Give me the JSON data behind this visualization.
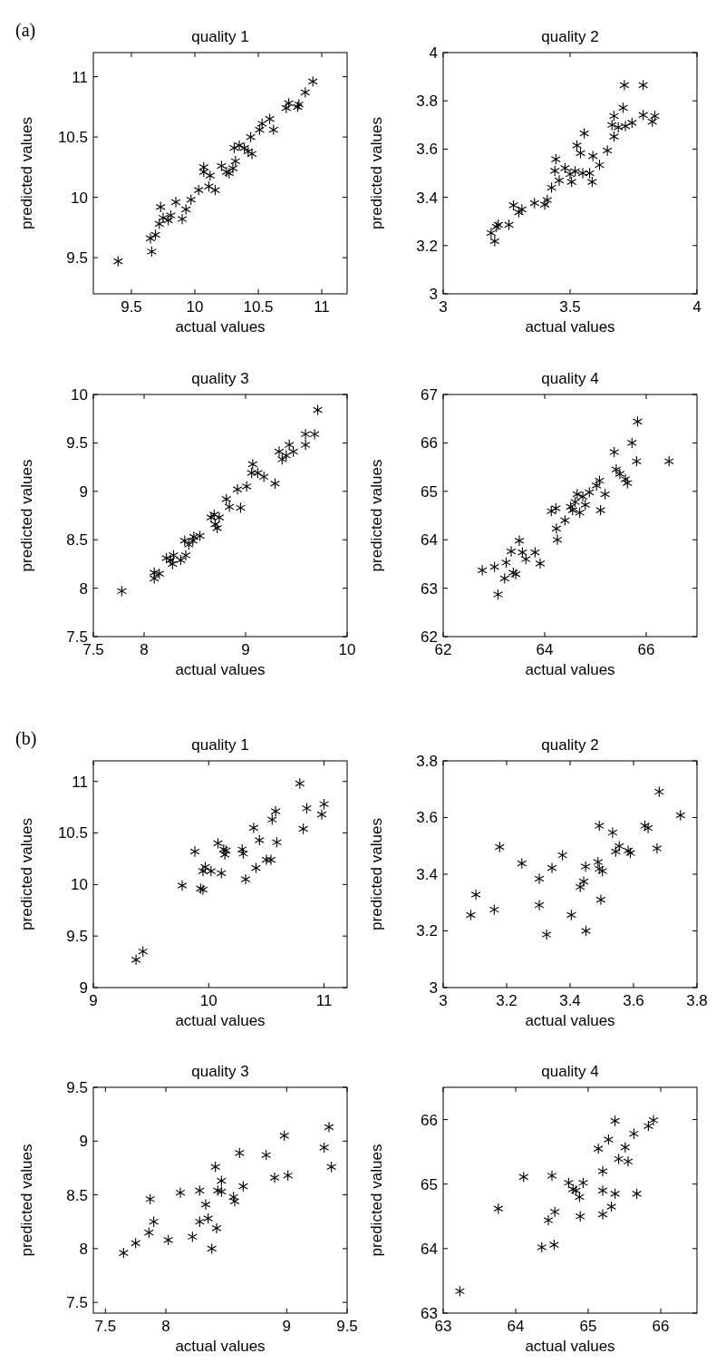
{
  "chart_data": [
    {
      "type": "scatter",
      "title": "quality 1",
      "xlabel": "actual values",
      "ylabel": "predicted values",
      "annotations": [
        "(a)"
      ],
      "color": "#000000",
      "marker": "cross",
      "xlim": [
        9.2,
        11.2
      ],
      "ylim": [
        9.2,
        11.2
      ],
      "xticks": [
        9.5,
        10,
        10.5,
        11
      ],
      "yticks": [
        9.5,
        10,
        10.5,
        11
      ],
      "x": [
        9.395,
        9.65,
        9.69,
        9.66,
        9.73,
        9.72,
        9.75,
        9.79,
        9.81,
        9.85,
        9.9,
        9.93,
        9.97,
        10.03,
        10.07,
        10.07,
        10.12,
        10.11,
        10.16,
        10.21,
        10.25,
        10.27,
        10.3,
        10.32,
        10.31,
        10.35,
        10.39,
        10.42,
        10.45,
        10.44,
        10.51,
        10.53,
        10.59,
        10.62,
        10.72,
        10.74,
        10.81,
        10.82,
        10.87,
        10.93
      ],
      "values": [
        9.47,
        9.66,
        9.69,
        9.55,
        9.92,
        9.78,
        9.83,
        9.81,
        9.85,
        9.96,
        9.82,
        9.9,
        9.98,
        10.06,
        10.25,
        10.21,
        10.18,
        10.09,
        10.06,
        10.26,
        10.21,
        10.2,
        10.24,
        10.3,
        10.41,
        10.43,
        10.41,
        10.38,
        10.36,
        10.5,
        10.56,
        10.61,
        10.65,
        10.56,
        10.74,
        10.78,
        10.75,
        10.77,
        10.87,
        10.96
      ]
    },
    {
      "type": "scatter",
      "title": "quality 2",
      "xlabel": "actual values",
      "ylabel": "predicted values",
      "color": "#000000",
      "marker": "cross",
      "xlim": [
        3,
        4
      ],
      "ylim": [
        3,
        4
      ],
      "xticks": [
        3,
        3.5,
        4
      ],
      "yticks": [
        3,
        3.2,
        3.4,
        3.6,
        3.8,
        4
      ],
      "x": [
        3.189,
        3.203,
        3.21,
        3.217,
        3.259,
        3.277,
        3.298,
        3.31,
        3.36,
        3.4,
        3.41,
        3.427,
        3.444,
        3.44,
        3.457,
        3.48,
        3.5,
        3.506,
        3.52,
        3.527,
        3.541,
        3.55,
        3.577,
        3.556,
        3.59,
        3.587,
        3.616,
        3.647,
        3.665,
        3.673,
        3.673,
        3.69,
        3.709,
        3.718,
        3.744,
        3.714,
        3.788,
        3.788,
        3.824,
        3.834
      ],
      "values": [
        3.252,
        3.218,
        3.278,
        3.286,
        3.286,
        3.367,
        3.338,
        3.35,
        3.376,
        3.37,
        3.389,
        3.44,
        3.558,
        3.51,
        3.47,
        3.521,
        3.496,
        3.464,
        3.508,
        3.615,
        3.583,
        3.5,
        3.5,
        3.665,
        3.571,
        3.464,
        3.534,
        3.594,
        3.7,
        3.737,
        3.652,
        3.69,
        3.771,
        3.695,
        3.709,
        3.865,
        3.865,
        3.741,
        3.714,
        3.737
      ]
    },
    {
      "type": "scatter",
      "title": "quality 3",
      "xlabel": "actual values",
      "ylabel": "predicted values",
      "color": "#000000",
      "marker": "cross",
      "xlim": [
        7.5,
        10
      ],
      "ylim": [
        7.5,
        10
      ],
      "xticks": [
        7.5,
        8,
        9,
        10
      ],
      "yticks": [
        7.5,
        8,
        8.5,
        9,
        9.5,
        10
      ],
      "x": [
        7.78,
        8.1,
        8.1,
        8.15,
        8.22,
        8.26,
        8.28,
        8.29,
        8.36,
        8.41,
        8.4,
        8.44,
        8.48,
        8.49,
        8.55,
        8.66,
        8.69,
        8.7,
        8.72,
        8.74,
        8.81,
        8.84,
        8.92,
        8.95,
        9.01,
        9.07,
        9.06,
        9.12,
        9.18,
        9.29,
        9.33,
        9.36,
        9.4,
        9.43,
        9.47,
        9.59,
        9.59,
        9.68,
        9.71
      ],
      "values": [
        7.97,
        8.1,
        8.16,
        8.15,
        8.31,
        8.29,
        8.25,
        8.34,
        8.29,
        8.34,
        8.49,
        8.45,
        8.49,
        8.53,
        8.54,
        8.73,
        8.76,
        8.66,
        8.62,
        8.73,
        8.92,
        8.84,
        9.02,
        8.83,
        9.05,
        9.28,
        9.19,
        9.19,
        9.15,
        9.08,
        9.41,
        9.33,
        9.37,
        9.48,
        9.41,
        9.48,
        9.59,
        9.59,
        9.84
      ]
    },
    {
      "type": "scatter",
      "title": "quality 4",
      "xlabel": "actual values",
      "ylabel": "predicted values",
      "color": "#000000",
      "marker": "cross",
      "xlim": [
        62,
        67
      ],
      "ylim": [
        62,
        67
      ],
      "xticks": [
        62,
        64,
        66
      ],
      "yticks": [
        62,
        63,
        64,
        65,
        66,
        67
      ],
      "x": [
        62.77,
        63.01,
        63.08,
        63.21,
        63.24,
        63.34,
        63.38,
        63.43,
        63.5,
        63.56,
        63.63,
        63.81,
        63.91,
        64.13,
        64.22,
        64.23,
        64.25,
        64.4,
        64.51,
        64.55,
        64.6,
        64.64,
        64.69,
        64.75,
        64.8,
        64.88,
        65.02,
        65.08,
        65.1,
        65.19,
        65.37,
        65.41,
        65.48,
        65.59,
        65.63,
        65.72,
        65.81,
        65.83,
        66.45
      ],
      "values": [
        63.37,
        63.44,
        62.87,
        63.2,
        63.53,
        63.76,
        63.32,
        63.29,
        63.98,
        63.74,
        63.6,
        63.74,
        63.51,
        64.59,
        64.65,
        64.23,
        64.0,
        64.4,
        64.68,
        64.61,
        64.78,
        64.94,
        64.56,
        64.89,
        64.72,
        64.98,
        65.12,
        65.22,
        64.61,
        64.94,
        65.81,
        65.45,
        65.36,
        65.25,
        65.17,
        66.0,
        65.62,
        66.44,
        65.62
      ]
    },
    {
      "type": "scatter",
      "title": "quality 1",
      "xlabel": "actual values",
      "ylabel": "predicted values",
      "annotations": [
        "(b)"
      ],
      "color": "#000000",
      "marker": "cross",
      "xlim": [
        9,
        11.2
      ],
      "ylim": [
        9,
        11.2
      ],
      "xticks": [
        9,
        10,
        11
      ],
      "yticks": [
        9,
        9.5,
        10,
        10.5,
        11
      ],
      "x": [
        9.37,
        9.43,
        9.77,
        9.88,
        9.93,
        9.95,
        9.95,
        9.97,
        10.02,
        10.08,
        10.11,
        10.13,
        10.14,
        10.15,
        10.29,
        10.3,
        10.32,
        10.39,
        10.41,
        10.44,
        10.5,
        10.54,
        10.55,
        10.58,
        10.59,
        10.79,
        10.82,
        10.85,
        10.98,
        11.0
      ],
      "values": [
        9.27,
        9.35,
        9.99,
        10.32,
        9.96,
        9.95,
        10.13,
        10.17,
        10.13,
        10.4,
        10.11,
        10.34,
        10.29,
        10.33,
        10.34,
        10.3,
        10.05,
        10.55,
        10.16,
        10.43,
        10.24,
        10.24,
        10.63,
        10.71,
        10.41,
        10.98,
        10.54,
        10.74,
        10.68,
        10.78
      ]
    },
    {
      "type": "scatter",
      "title": "quality 2",
      "xlabel": "actual values",
      "ylabel": "predicted values",
      "color": "#000000",
      "marker": "cross",
      "xlim": [
        3,
        3.8
      ],
      "ylim": [
        3,
        3.8
      ],
      "xticks": [
        3,
        3.2,
        3.4,
        3.6,
        3.8
      ],
      "yticks": [
        3,
        3.2,
        3.4,
        3.6,
        3.8
      ],
      "x": [
        3.087,
        3.103,
        3.161,
        3.178,
        3.248,
        3.303,
        3.303,
        3.326,
        3.343,
        3.376,
        3.404,
        3.432,
        3.443,
        3.449,
        3.45,
        3.488,
        3.492,
        3.492,
        3.497,
        3.502,
        3.534,
        3.544,
        3.555,
        3.583,
        3.59,
        3.636,
        3.646,
        3.674,
        3.681,
        3.748
      ],
      "values": [
        3.256,
        3.328,
        3.275,
        3.496,
        3.438,
        3.384,
        3.291,
        3.187,
        3.422,
        3.467,
        3.256,
        3.355,
        3.374,
        3.427,
        3.2,
        3.443,
        3.571,
        3.419,
        3.31,
        3.411,
        3.547,
        3.48,
        3.499,
        3.483,
        3.475,
        3.571,
        3.563,
        3.491,
        3.691,
        3.608
      ]
    },
    {
      "type": "scatter",
      "title": "quality 3",
      "xlabel": "actual values",
      "ylabel": "predicted values",
      "color": "#000000",
      "marker": "cross",
      "xlim": [
        7.4,
        9.5
      ],
      "ylim": [
        7.4,
        9.5
      ],
      "xticks": [
        7.5,
        8,
        9,
        9.5
      ],
      "yticks": [
        7.5,
        8,
        8.5,
        9,
        9.5
      ],
      "x": [
        7.65,
        7.75,
        7.86,
        7.87,
        7.9,
        8.02,
        8.12,
        8.22,
        8.28,
        8.28,
        8.33,
        8.35,
        8.38,
        8.42,
        8.41,
        8.43,
        8.46,
        8.46,
        8.56,
        8.57,
        8.61,
        8.64,
        8.83,
        8.9,
        8.98,
        9.01,
        9.31,
        9.35,
        9.37
      ],
      "values": [
        7.96,
        8.05,
        8.15,
        8.46,
        8.25,
        8.08,
        8.52,
        8.11,
        8.54,
        8.25,
        8.41,
        8.28,
        8.0,
        8.19,
        8.76,
        8.54,
        8.63,
        8.53,
        8.48,
        8.44,
        8.89,
        8.58,
        8.87,
        8.66,
        9.05,
        8.68,
        8.94,
        9.13,
        8.76
      ]
    },
    {
      "type": "scatter",
      "title": "quality 4",
      "xlabel": "actual values",
      "ylabel": "predicted values",
      "color": "#000000",
      "marker": "cross",
      "xlim": [
        63,
        66.5
      ],
      "ylim": [
        63,
        66.5
      ],
      "xticks": [
        63,
        64,
        65,
        66
      ],
      "yticks": [
        63,
        64,
        65,
        66
      ],
      "x": [
        63.23,
        63.76,
        64.11,
        64.36,
        64.45,
        64.5,
        64.53,
        64.54,
        64.73,
        64.79,
        64.83,
        64.88,
        64.89,
        64.93,
        65.14,
        65.2,
        65.2,
        65.2,
        65.28,
        65.32,
        65.37,
        65.37,
        65.42,
        65.51,
        65.55,
        65.63,
        65.67,
        65.83,
        65.9
      ],
      "values": [
        63.34,
        64.62,
        65.11,
        64.02,
        64.44,
        65.13,
        64.06,
        64.57,
        65.02,
        64.92,
        64.9,
        64.8,
        64.5,
        65.02,
        65.55,
        65.2,
        64.9,
        64.53,
        65.69,
        64.65,
        64.85,
        65.98,
        65.39,
        65.57,
        65.35,
        65.78,
        64.85,
        65.9,
        65.99
      ]
    }
  ]
}
